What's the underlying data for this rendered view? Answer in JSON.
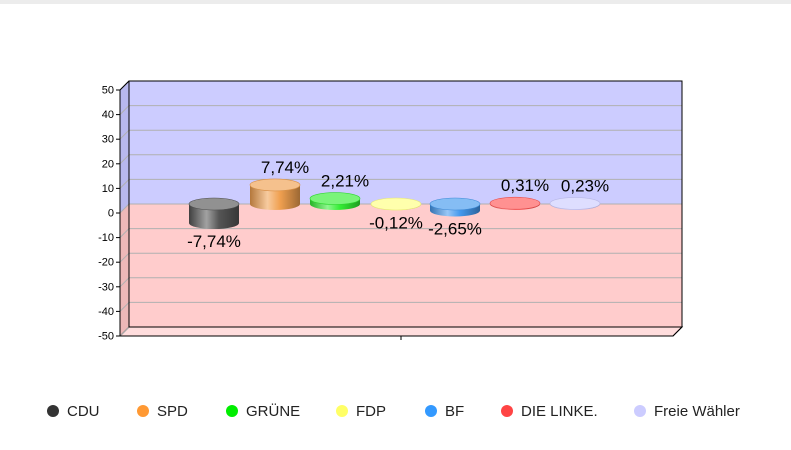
{
  "chart_data": {
    "type": "bar",
    "title": "",
    "xlabel": "",
    "ylabel": "",
    "categories": [
      "CDU",
      "SPD",
      "GRÜNE",
      "FDP",
      "BF",
      "DIE LINKE.",
      "Freie Wähler"
    ],
    "values": [
      -7.74,
      7.74,
      2.21,
      -0.12,
      -2.65,
      0.31,
      0.23
    ],
    "value_labels": [
      "-7,74%",
      "7,74%",
      "2,21%",
      "-0,12%",
      "-2,65%",
      "0,31%",
      "0,23%"
    ],
    "colors": [
      "#555555",
      "#f0a050",
      "#33ee33",
      "#ffff80",
      "#4499ee",
      "#ff5555",
      "#ccccff"
    ],
    "ylim": [
      -50,
      50
    ],
    "yticks": [
      "50",
      "40",
      "30",
      "20",
      "10",
      "0",
      "-10",
      "-20",
      "-30",
      "-40",
      "-50"
    ],
    "grid": true,
    "background_positive": "#ccccff",
    "background_negative": "#ffcccc",
    "legend_position": "bottom"
  },
  "legend": {
    "items": [
      {
        "label": "CDU",
        "color": "#333333"
      },
      {
        "label": "SPD",
        "color": "#ff9933"
      },
      {
        "label": "GRÜNE",
        "color": "#00ee00"
      },
      {
        "label": "FDP",
        "color": "#ffff66"
      },
      {
        "label": "BF",
        "color": "#3399ff"
      },
      {
        "label": "DIE LINKE.",
        "color": "#ff4444"
      },
      {
        "label": "Freie Wähler",
        "color": "#ccccff"
      }
    ]
  }
}
